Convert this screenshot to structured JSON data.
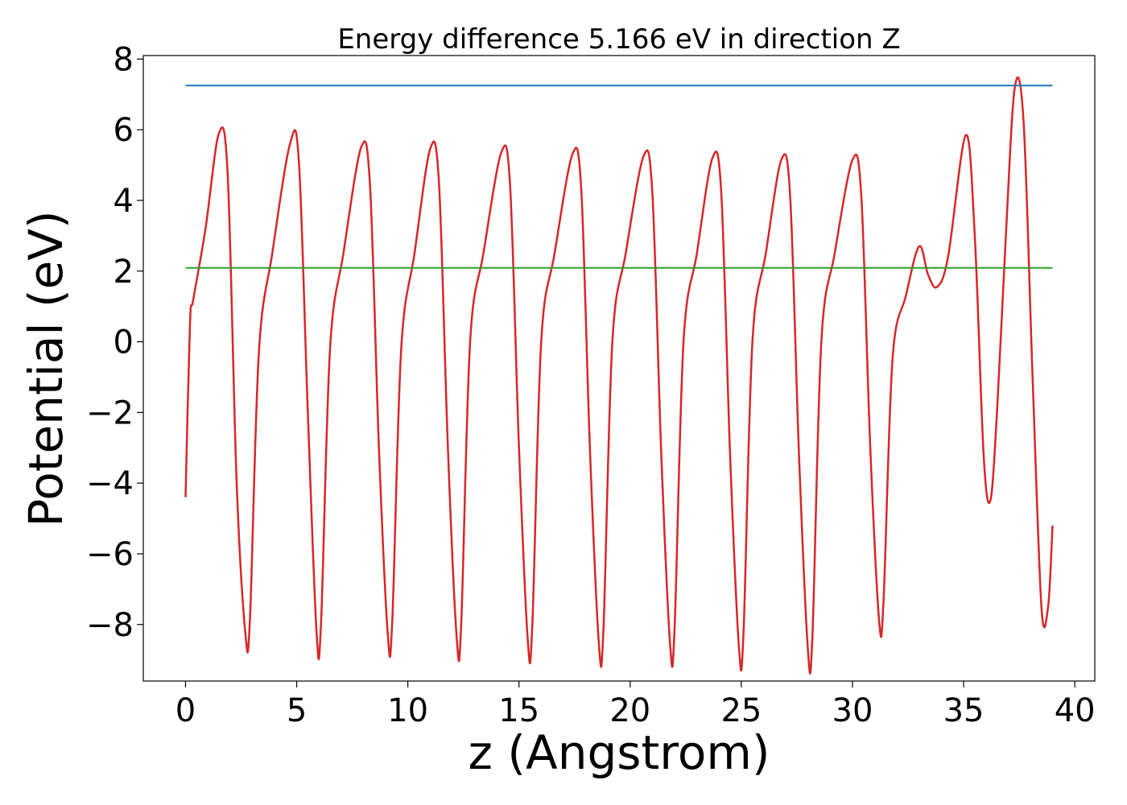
{
  "chart_data": {
    "type": "line",
    "title": "Energy difference 5.166 eV in direction Z",
    "xlabel": "z (Angstrom)",
    "ylabel": "Potential (eV)",
    "xlim": [
      -1.9,
      40.9
    ],
    "ylim": [
      -9.6,
      8.1
    ],
    "x_ticks": [
      0,
      5,
      10,
      15,
      20,
      25,
      30,
      35,
      40
    ],
    "y_ticks": [
      -8,
      -6,
      -4,
      -2,
      0,
      2,
      4,
      6,
      8
    ],
    "x_tick_labels": [
      "0",
      "5",
      "10",
      "15",
      "20",
      "25",
      "30",
      "35",
      "40"
    ],
    "y_tick_labels": [
      "−8",
      "−6",
      "−4",
      "−2",
      "0",
      "2",
      "4",
      "6",
      "8"
    ],
    "grid": false,
    "series": [
      {
        "color": "#d62728",
        "x": [
          0,
          0.2,
          0.35,
          0.9,
          1.5,
          1.9,
          2.3,
          2.7,
          2.9,
          3.3,
          3.9,
          4.7,
          5.1,
          5.5,
          5.9,
          6.1,
          6.5,
          7.1,
          7.9,
          8.3,
          8.7,
          9.1,
          9.3,
          9.7,
          10.3,
          11.0,
          11.4,
          11.8,
          12.2,
          12.4,
          12.8,
          13.4,
          14.2,
          14.6,
          15.0,
          15.4,
          15.6,
          16.0,
          16.6,
          17.4,
          17.8,
          18.2,
          18.6,
          18.8,
          19.2,
          19.8,
          20.6,
          21.0,
          21.4,
          21.8,
          22.0,
          22.4,
          23.0,
          23.7,
          24.1,
          24.5,
          24.9,
          25.1,
          25.5,
          26.1,
          26.8,
          27.2,
          27.6,
          28.0,
          28.2,
          28.6,
          29.2,
          30.0,
          30.4,
          30.8,
          31.2,
          31.4,
          31.8,
          32.4,
          33.0,
          33.4,
          33.8,
          34.3,
          35.1,
          35.5,
          35.9,
          36.2,
          36.5,
          36.9,
          37.3,
          37.7,
          38.1,
          38.5,
          38.8,
          39.0
        ],
        "y": [
          -4.4,
          0.5,
          1.2,
          3.2,
          5.9,
          4.7,
          -4.0,
          -8.3,
          -7.8,
          -0.3,
          2.5,
          5.6,
          5.1,
          -2.0,
          -8.3,
          -7.9,
          -0.2,
          2.5,
          5.5,
          4.4,
          -3.0,
          -8.3,
          -7.9,
          -0.2,
          2.5,
          5.45,
          4.5,
          -3.0,
          -8.4,
          -8.0,
          0.0,
          2.5,
          5.35,
          4.4,
          -3.0,
          -8.5,
          -8.0,
          0.0,
          2.5,
          5.3,
          4.3,
          -3.2,
          -8.6,
          -8.1,
          0.0,
          2.5,
          5.25,
          4.2,
          -3.2,
          -8.6,
          -8.1,
          0.0,
          2.5,
          5.2,
          4.2,
          -3.3,
          -8.7,
          -8.2,
          0.0,
          2.5,
          5.15,
          4.1,
          -3.3,
          -8.75,
          -8.3,
          0.0,
          2.5,
          5.15,
          4.1,
          -3.0,
          -7.9,
          -7.3,
          -0.5,
          1.3,
          2.7,
          1.9,
          1.55,
          2.4,
          5.85,
          3.0,
          -3.2,
          -4.5,
          -2.0,
          3.0,
          7.2,
          6.2,
          -1.0,
          -7.5,
          -7.5,
          -5.2
        ]
      },
      {
        "color": "#1f77b4",
        "x": [
          0,
          39
        ],
        "y": [
          7.25,
          7.25
        ]
      },
      {
        "color": "#2ca02c",
        "x": [
          0,
          39
        ],
        "y": [
          2.09,
          2.09
        ]
      }
    ]
  }
}
